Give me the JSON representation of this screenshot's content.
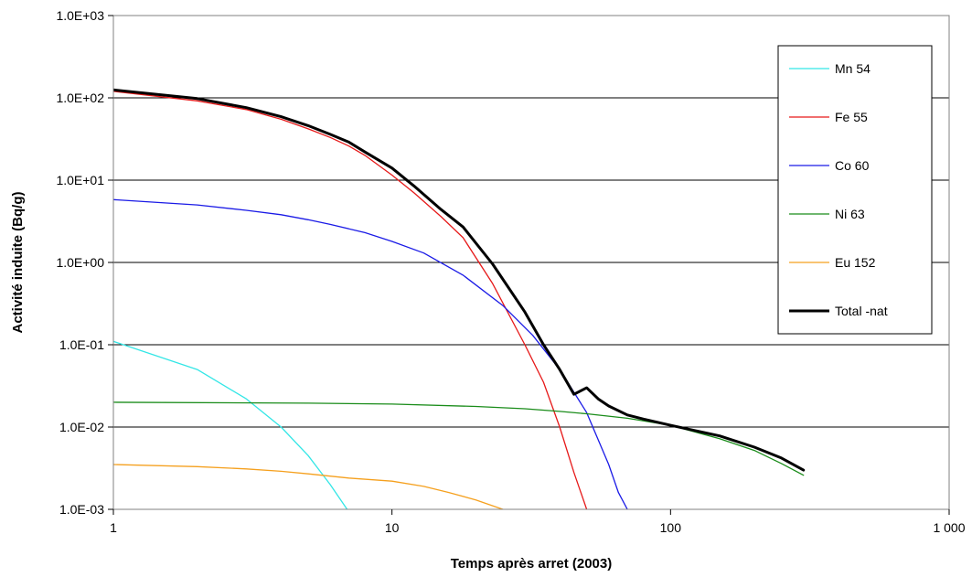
{
  "chart_data": {
    "type": "line",
    "title": "",
    "xlabel": "Temps après arret (2003)",
    "ylabel": "Activité induite (Bq/g)",
    "xscale": "log",
    "yscale": "log",
    "xlim": [
      1,
      1000
    ],
    "ylim": [
      0.001,
      1000
    ],
    "x_ticks": [
      1,
      10,
      100,
      1000
    ],
    "x_tick_labels": [
      "1",
      "10",
      "100",
      "1 000"
    ],
    "y_ticks": [
      0.001,
      0.01,
      0.1,
      1,
      10,
      100,
      1000
    ],
    "y_tick_labels": [
      "1.0E-03",
      "1.0E-02",
      "1.0E-01",
      "1.0E+00",
      "1.0E+01",
      "1.0E+02",
      "1.0E+03"
    ],
    "grid": "horizontal major lines",
    "legend_position": "right",
    "series": [
      {
        "name": "Mn 54",
        "color": "#33e6e6",
        "points": [
          [
            1,
            0.11
          ],
          [
            2,
            0.05
          ],
          [
            3,
            0.022
          ],
          [
            4,
            0.01
          ],
          [
            5,
            0.0045
          ],
          [
            6,
            0.002
          ],
          [
            6.9,
            0.001
          ]
        ]
      },
      {
        "name": "Fe 55",
        "color": "#e61919",
        "points": [
          [
            1,
            120
          ],
          [
            2,
            92
          ],
          [
            3,
            72
          ],
          [
            4,
            55
          ],
          [
            5,
            42
          ],
          [
            6,
            33
          ],
          [
            7,
            26
          ],
          [
            8,
            20
          ],
          [
            10,
            11.5
          ],
          [
            12,
            7
          ],
          [
            15,
            3.6
          ],
          [
            18,
            2
          ],
          [
            23,
            0.55
          ],
          [
            30,
            0.1
          ],
          [
            35,
            0.035
          ],
          [
            40,
            0.01
          ],
          [
            45,
            0.0028
          ],
          [
            50,
            0.001
          ]
        ]
      },
      {
        "name": "Co 60",
        "color": "#1a1ae6",
        "points": [
          [
            1,
            5.8
          ],
          [
            2,
            5
          ],
          [
            3,
            4.3
          ],
          [
            4,
            3.8
          ],
          [
            5,
            3.3
          ],
          [
            6,
            2.9
          ],
          [
            8,
            2.3
          ],
          [
            10,
            1.8
          ],
          [
            13,
            1.3
          ],
          [
            18,
            0.7
          ],
          [
            25,
            0.3
          ],
          [
            32,
            0.13
          ],
          [
            40,
            0.05
          ],
          [
            50,
            0.015
          ],
          [
            60,
            0.0035
          ],
          [
            65,
            0.0016
          ],
          [
            70,
            0.001
          ]
        ]
      },
      {
        "name": "Ni 63",
        "color": "#1a8c1a",
        "points": [
          [
            1,
            0.02
          ],
          [
            5,
            0.0195
          ],
          [
            10,
            0.019
          ],
          [
            20,
            0.0178
          ],
          [
            30,
            0.0167
          ],
          [
            40,
            0.0155
          ],
          [
            50,
            0.0145
          ],
          [
            70,
            0.0128
          ],
          [
            100,
            0.0105
          ],
          [
            150,
            0.0072
          ],
          [
            200,
            0.0052
          ],
          [
            250,
            0.0036
          ],
          [
            300,
            0.0026
          ]
        ]
      },
      {
        "name": "Eu 152",
        "color": "#f5a01e",
        "points": [
          [
            1,
            0.0035
          ],
          [
            2,
            0.0033
          ],
          [
            3,
            0.0031
          ],
          [
            4,
            0.0029
          ],
          [
            5,
            0.0027
          ],
          [
            7,
            0.0024
          ],
          [
            10,
            0.0022
          ],
          [
            13,
            0.0019
          ],
          [
            16,
            0.0016
          ],
          [
            20,
            0.0013
          ],
          [
            25,
            0.001
          ]
        ]
      },
      {
        "name": "Total -nat",
        "color": "#000000",
        "bold": true,
        "points": [
          [
            1,
            125
          ],
          [
            2,
            98
          ],
          [
            3,
            76
          ],
          [
            4,
            59
          ],
          [
            5,
            46
          ],
          [
            6,
            36
          ],
          [
            7,
            29
          ],
          [
            8,
            22
          ],
          [
            10,
            14
          ],
          [
            12,
            8.5
          ],
          [
            15,
            4.4
          ],
          [
            18,
            2.7
          ],
          [
            23,
            0.95
          ],
          [
            30,
            0.25
          ],
          [
            35,
            0.1
          ],
          [
            40,
            0.05
          ],
          [
            45,
            0.025
          ],
          [
            50,
            0.03
          ],
          [
            55,
            0.022
          ],
          [
            60,
            0.018
          ],
          [
            70,
            0.014
          ],
          [
            80,
            0.0125
          ],
          [
            100,
            0.0105
          ],
          [
            150,
            0.0078
          ],
          [
            200,
            0.0057
          ],
          [
            250,
            0.0042
          ],
          [
            300,
            0.003
          ]
        ]
      }
    ]
  }
}
